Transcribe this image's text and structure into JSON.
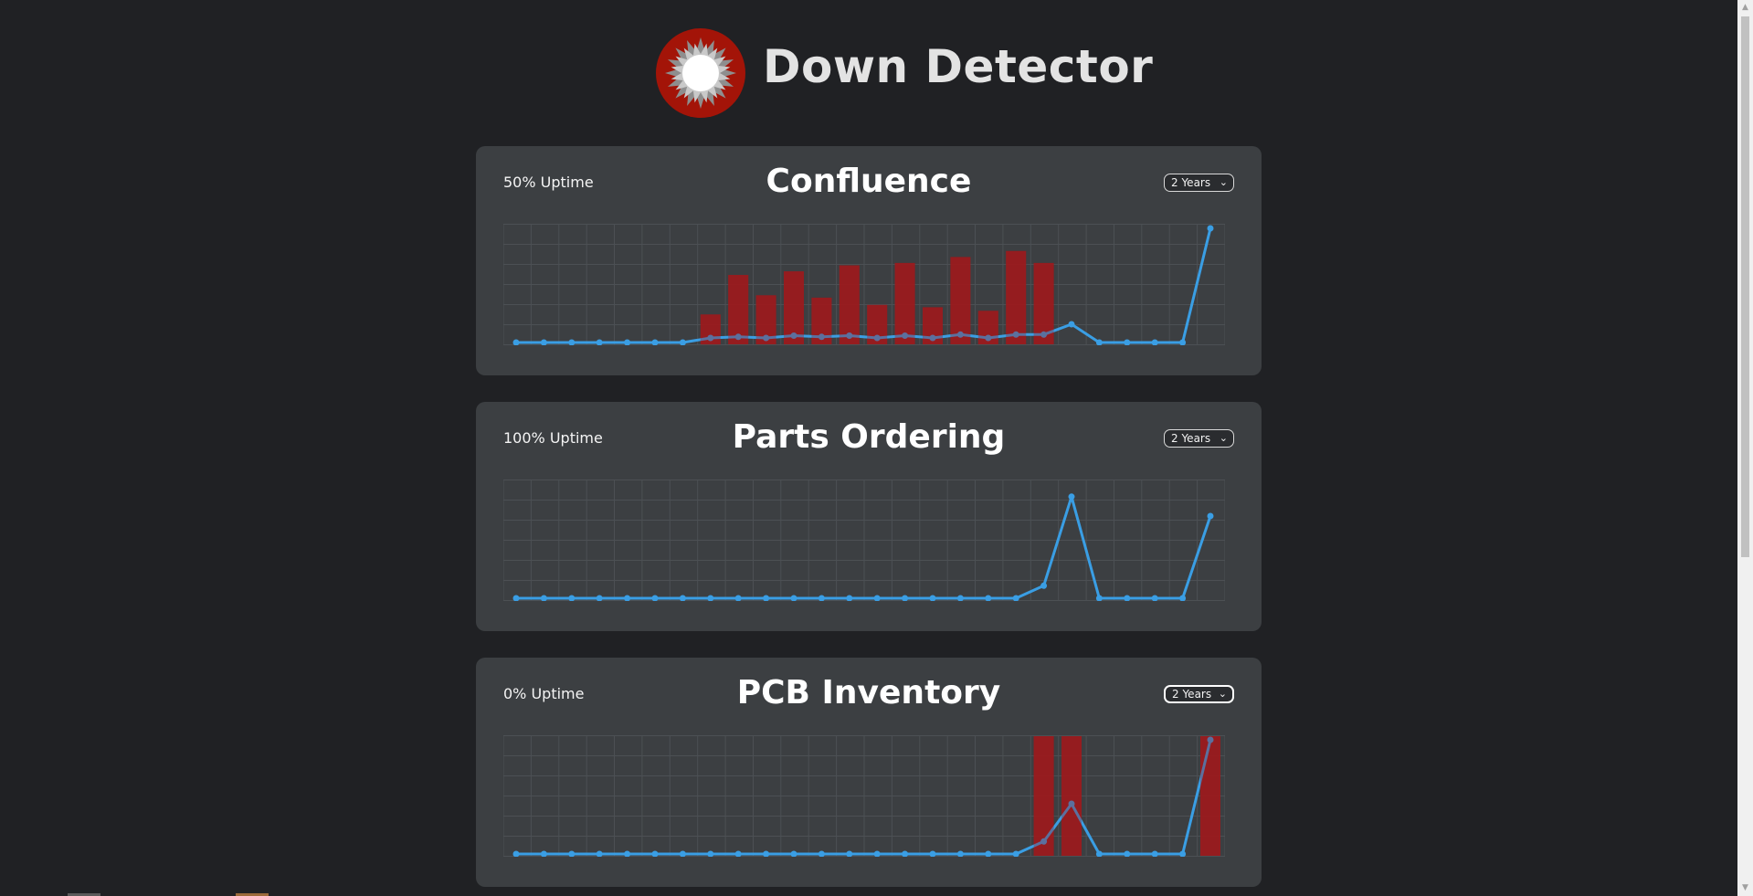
{
  "site": {
    "title": "Down Detector"
  },
  "colors": {
    "background": "#202124",
    "card": "#3c3f42",
    "line": "#3a9ee4",
    "bar": "#9b1b1e",
    "logo_red": "#a31408"
  },
  "icons": {
    "logo": "down-detector-logo",
    "dropdown": "chevron-down-icon"
  },
  "services": [
    {
      "name": "Confluence",
      "uptime": "50% Uptime",
      "range": "2 Years",
      "chart_data": {
        "type": "bar",
        "grid": true,
        "line": [
          0,
          0,
          0,
          0,
          0,
          0,
          0,
          0.04,
          0.05,
          0.04,
          0.06,
          0.05,
          0.06,
          0.04,
          0.06,
          0.04,
          0.07,
          0.04,
          0.07,
          0.07,
          0.16,
          0,
          0,
          0,
          0,
          1
        ],
        "bars": [
          0,
          0,
          0,
          0,
          0,
          0,
          0,
          0.25,
          0.58,
          0.41,
          0.61,
          0.39,
          0.66,
          0.33,
          0.68,
          0.31,
          0.73,
          0.28,
          0.78,
          0.68,
          0,
          0,
          0,
          0,
          0,
          0
        ]
      }
    },
    {
      "name": "Parts Ordering",
      "uptime": "100% Uptime",
      "range": "2 Years",
      "chart_data": {
        "type": "line",
        "grid": true,
        "line": [
          0,
          0,
          0,
          0,
          0,
          0,
          0,
          0,
          0,
          0,
          0,
          0,
          0,
          0,
          0,
          0,
          0,
          0,
          0,
          0.11,
          0.89,
          0,
          0,
          0,
          0,
          0.72
        ],
        "bars": [
          0,
          0,
          0,
          0,
          0,
          0,
          0,
          0,
          0,
          0,
          0,
          0,
          0,
          0,
          0,
          0,
          0,
          0,
          0,
          0,
          0,
          0,
          0,
          0,
          0,
          0
        ]
      }
    },
    {
      "name": "PCB Inventory",
      "uptime": "0% Uptime",
      "range": "2 Years",
      "chart_data": {
        "type": "bar",
        "grid": true,
        "line": [
          0,
          0,
          0,
          0,
          0,
          0,
          0,
          0,
          0,
          0,
          0,
          0,
          0,
          0,
          0,
          0,
          0,
          0,
          0,
          0.11,
          0.44,
          0,
          0,
          0,
          0,
          1
        ],
        "bars": [
          0,
          0,
          0,
          0,
          0,
          0,
          0,
          0,
          0,
          0,
          0,
          0,
          0,
          0,
          0,
          0,
          0,
          0,
          0,
          1,
          1,
          0,
          0,
          0,
          0,
          1
        ]
      }
    }
  ]
}
